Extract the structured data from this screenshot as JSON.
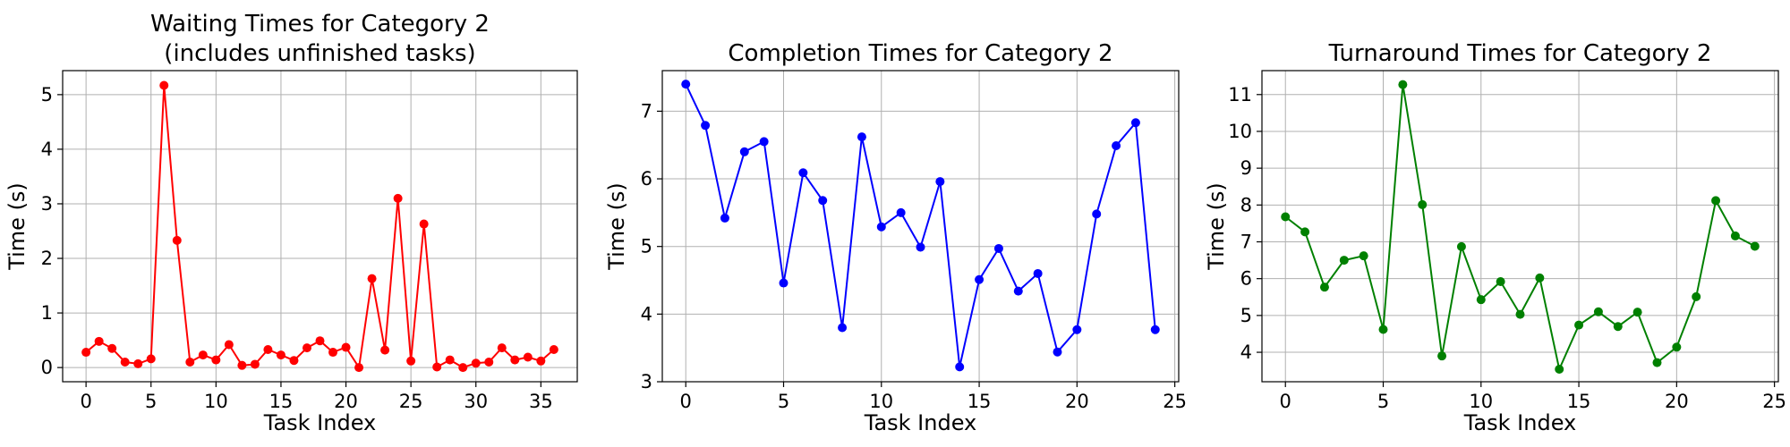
{
  "chart_data": [
    {
      "type": "line",
      "title": "Waiting Times for Category 2",
      "subtitle": "(includes unfinished tasks)",
      "xlabel": "Task Index",
      "ylabel": "Time (s)",
      "xlim": [
        -1.8,
        37.8
      ],
      "ylim": [
        -0.26,
        5.44
      ],
      "xticks": [
        0,
        5,
        10,
        15,
        20,
        25,
        30,
        35
      ],
      "yticks": [
        0,
        1,
        2,
        3,
        4,
        5
      ],
      "grid": true,
      "color": "#ff0000",
      "series": [
        {
          "x": [
            0,
            1,
            2,
            3,
            4,
            5,
            6,
            7,
            8,
            9,
            10,
            11,
            12,
            13,
            14,
            15,
            16,
            17,
            18,
            19,
            20,
            21,
            22,
            23,
            24,
            25,
            26,
            27,
            28,
            29,
            30,
            31,
            32,
            33,
            34,
            35,
            36
          ],
          "values": [
            0.28,
            0.48,
            0.35,
            0.1,
            0.07,
            0.16,
            5.17,
            2.33,
            0.1,
            0.23,
            0.14,
            0.42,
            0.04,
            0.06,
            0.33,
            0.23,
            0.13,
            0.36,
            0.49,
            0.28,
            0.37,
            0.0,
            1.63,
            0.32,
            3.1,
            0.12,
            2.63,
            0.01,
            0.14,
            0.0,
            0.08,
            0.1,
            0.36,
            0.14,
            0.19,
            0.12,
            0.33
          ]
        }
      ]
    },
    {
      "type": "line",
      "title": "Completion Times for Category 2",
      "xlabel": "Task Index",
      "ylabel": "Time (s)",
      "xlim": [
        -1.2,
        25.2
      ],
      "ylim": [
        3.0,
        7.6
      ],
      "xticks": [
        0,
        5,
        10,
        15,
        20,
        25
      ],
      "yticks": [
        3,
        4,
        5,
        6,
        7
      ],
      "grid": true,
      "color": "#0000ff",
      "series": [
        {
          "x": [
            0,
            1,
            2,
            3,
            4,
            5,
            6,
            7,
            8,
            9,
            10,
            11,
            12,
            13,
            14,
            15,
            16,
            17,
            18,
            19,
            20,
            21,
            22,
            23,
            24
          ],
          "values": [
            7.4,
            6.79,
            5.42,
            6.4,
            6.55,
            4.46,
            6.09,
            5.68,
            3.8,
            6.62,
            5.29,
            5.5,
            4.99,
            5.96,
            3.22,
            4.51,
            4.97,
            4.34,
            4.6,
            3.44,
            3.77,
            5.48,
            6.49,
            6.83,
            3.77
          ]
        }
      ]
    },
    {
      "type": "line",
      "title": "Turnaround Times for Category 2",
      "xlabel": "Task Index",
      "ylabel": "Time (s)",
      "xlim": [
        -1.2,
        25.2
      ],
      "ylim": [
        3.2,
        11.65
      ],
      "xticks": [
        0,
        5,
        10,
        15,
        20,
        25
      ],
      "yticks": [
        4,
        5,
        6,
        7,
        8,
        9,
        10,
        11
      ],
      "grid": true,
      "color": "#008000",
      "series": [
        {
          "x": [
            0,
            1,
            2,
            3,
            4,
            5,
            6,
            7,
            8,
            9,
            10,
            11,
            12,
            13,
            14,
            15,
            16,
            17,
            18,
            19,
            20,
            21,
            22,
            23,
            24
          ],
          "values": [
            7.68,
            7.27,
            5.77,
            6.5,
            6.62,
            4.62,
            11.27,
            8.01,
            3.9,
            6.87,
            5.43,
            5.92,
            5.03,
            6.02,
            3.54,
            4.74,
            5.1,
            4.7,
            5.09,
            3.72,
            4.14,
            5.51,
            8.12,
            7.16,
            6.88
          ]
        }
      ]
    }
  ]
}
